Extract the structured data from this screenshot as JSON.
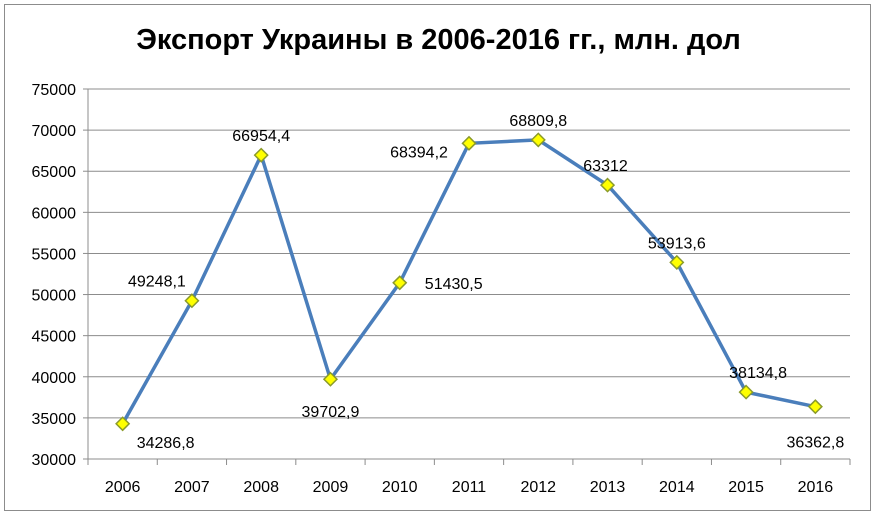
{
  "chart_data": {
    "type": "line",
    "title": "Экспорт Украины в 2006-2016 гг., млн. дол",
    "xlabel": "",
    "ylabel": "",
    "categories": [
      "2006",
      "2007",
      "2008",
      "2009",
      "2010",
      "2011",
      "2012",
      "2013",
      "2014",
      "2015",
      "2016"
    ],
    "series": [
      {
        "values": [
          34286.8,
          49248.1,
          66954.4,
          39702.9,
          51430.5,
          68394.2,
          68809.8,
          63312,
          53913.6,
          38134.8,
          36362.8
        ]
      }
    ],
    "data_labels": [
      "34286,8",
      "49248,1",
      "66954,4",
      "39702,9",
      "51430,5",
      "68394,2",
      "68809,8",
      "63312",
      "53913,6",
      "38134,8",
      "36362,8"
    ],
    "ylim": [
      30000,
      75000
    ],
    "yticks": [
      30000,
      35000,
      40000,
      45000,
      50000,
      55000,
      60000,
      65000,
      70000,
      75000
    ],
    "ytick_labels": [
      "30000",
      "35000",
      "40000",
      "45000",
      "50000",
      "55000",
      "60000",
      "65000",
      "70000",
      "75000"
    ],
    "grid": true,
    "line_color": "#4a7ebb",
    "marker_fill": "#ffff00",
    "marker_stroke": "#8a9a2a",
    "marker": "diamond"
  }
}
